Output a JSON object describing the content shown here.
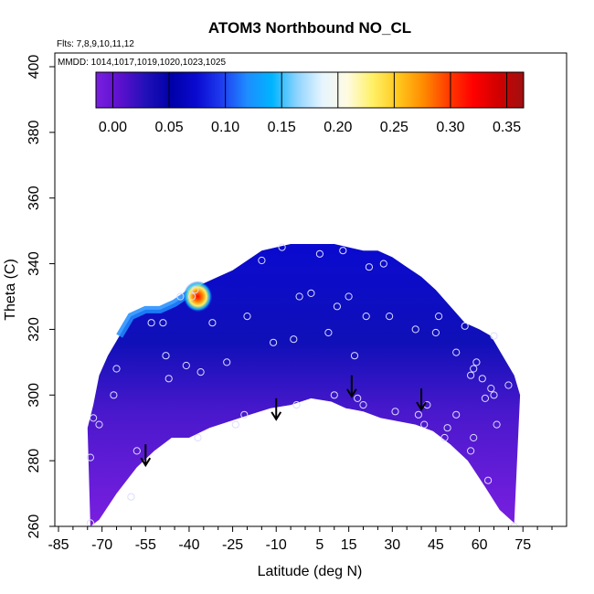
{
  "chart_data": {
    "type": "heatmap",
    "title": "ATOM3 Northbound NO_CL",
    "subtitle_flights": "Flts: 7,8,9,10,11,12",
    "subtitle_dates": "MMDD: 1014,1017,1019,1020,1023,1025",
    "xlabel": "Latitude (deg N)",
    "ylabel": "Theta (C)",
    "xlim": [
      -85,
      85
    ],
    "ylim": [
      260,
      400
    ],
    "x_ticks": [
      -85,
      -70,
      -55,
      -40,
      -25,
      -10,
      5,
      15,
      30,
      45,
      60,
      75
    ],
    "x_tick_labels": [
      "-85",
      "-70",
      "-55",
      "-40",
      "-25",
      "-10",
      "5",
      "15",
      "30",
      "45",
      "60",
      "75"
    ],
    "y_ticks": [
      260,
      280,
      300,
      320,
      340,
      360,
      380,
      400
    ],
    "y_tick_labels": [
      "260",
      "280",
      "300",
      "320",
      "340",
      "360",
      "380",
      "400"
    ],
    "colorbar": {
      "range": [
        -0.015,
        0.365
      ],
      "ticks": [
        0.0,
        0.05,
        0.1,
        0.15,
        0.2,
        0.25,
        0.3,
        0.35
      ],
      "tick_labels": [
        "0.00",
        "0.05",
        "0.10",
        "0.15",
        "0.20",
        "0.25",
        "0.30",
        "0.35"
      ],
      "colors": [
        "#7a1fe0",
        "#5a10cc",
        "#2010b8",
        "#0000a8",
        "#0a0ad0",
        "#1e3cf0",
        "#1e8cff",
        "#00b4ff",
        "#8fd4ff",
        "#e6f5ff",
        "#fffbe0",
        "#fff066",
        "#ffc81e",
        "#ff8c00",
        "#ff3c00",
        "#ff0000",
        "#d00000",
        "#a01010"
      ]
    },
    "field_boundary": {
      "lat": [
        -74,
        -71,
        -65,
        -58,
        -52,
        -46,
        -40,
        -33,
        -26,
        -19,
        -12,
        -5,
        2,
        9,
        14,
        20,
        26,
        32,
        38,
        44,
        50,
        56,
        62,
        67,
        72,
        74,
        72,
        68,
        64,
        60,
        55,
        50,
        45,
        40,
        35,
        30,
        25,
        20,
        15,
        10,
        5,
        0,
        -5,
        -10,
        -15,
        -20,
        -25,
        -30,
        -35,
        -40,
        -45,
        -50,
        -55,
        -60,
        -64,
        -68,
        -71,
        -73,
        -75
      ],
      "theta": [
        260,
        262,
        270,
        278,
        283,
        287,
        287,
        290,
        292,
        294,
        296,
        297,
        299,
        298,
        296,
        295,
        293,
        292,
        291,
        289,
        285,
        280,
        272,
        265,
        261,
        300,
        306,
        312,
        318,
        320,
        322,
        327,
        332,
        336,
        339,
        342,
        344,
        344,
        345,
        346,
        346,
        346,
        346,
        345,
        344,
        341,
        338,
        336,
        334,
        331,
        328,
        326,
        326,
        324,
        318,
        312,
        306,
        297,
        290
      ]
    },
    "hotspot": {
      "lat": -37,
      "theta": 330,
      "value": 0.34
    },
    "observations": [
      {
        "lat": -74,
        "theta": 261
      },
      {
        "lat": -74,
        "theta": 281
      },
      {
        "lat": -73,
        "theta": 293
      },
      {
        "lat": -71,
        "theta": 291
      },
      {
        "lat": -66,
        "theta": 300
      },
      {
        "lat": -65,
        "theta": 308
      },
      {
        "lat": -58,
        "theta": 283
      },
      {
        "lat": -60,
        "theta": 269
      },
      {
        "lat": -53,
        "theta": 322
      },
      {
        "lat": -49,
        "theta": 322
      },
      {
        "lat": -48,
        "theta": 312
      },
      {
        "lat": -47,
        "theta": 305
      },
      {
        "lat": -43,
        "theta": 330
      },
      {
        "lat": -41,
        "theta": 309
      },
      {
        "lat": -39,
        "theta": 330
      },
      {
        "lat": -38,
        "theta": 332
      },
      {
        "lat": -36,
        "theta": 307
      },
      {
        "lat": -37,
        "theta": 287
      },
      {
        "lat": -32,
        "theta": 322
      },
      {
        "lat": -24,
        "theta": 291
      },
      {
        "lat": -27,
        "theta": 310
      },
      {
        "lat": -20,
        "theta": 324
      },
      {
        "lat": -21,
        "theta": 294
      },
      {
        "lat": -15,
        "theta": 341
      },
      {
        "lat": -11,
        "theta": 316
      },
      {
        "lat": -8,
        "theta": 345
      },
      {
        "lat": -4,
        "theta": 317
      },
      {
        "lat": -3,
        "theta": 297
      },
      {
        "lat": -2,
        "theta": 330
      },
      {
        "lat": 2,
        "theta": 331
      },
      {
        "lat": 5,
        "theta": 343
      },
      {
        "lat": 8,
        "theta": 319
      },
      {
        "lat": 10,
        "theta": 300
      },
      {
        "lat": 11,
        "theta": 327
      },
      {
        "lat": 13,
        "theta": 344
      },
      {
        "lat": 15,
        "theta": 330
      },
      {
        "lat": 17,
        "theta": 312
      },
      {
        "lat": 18,
        "theta": 299
      },
      {
        "lat": 20,
        "theta": 297
      },
      {
        "lat": 21,
        "theta": 324
      },
      {
        "lat": 22,
        "theta": 339
      },
      {
        "lat": 27,
        "theta": 340
      },
      {
        "lat": 29,
        "theta": 324
      },
      {
        "lat": 31,
        "theta": 295
      },
      {
        "lat": 38,
        "theta": 320
      },
      {
        "lat": 39,
        "theta": 294
      },
      {
        "lat": 41,
        "theta": 291
      },
      {
        "lat": 42,
        "theta": 297
      },
      {
        "lat": 45,
        "theta": 319
      },
      {
        "lat": 46,
        "theta": 324
      },
      {
        "lat": 48,
        "theta": 287
      },
      {
        "lat": 49,
        "theta": 290
      },
      {
        "lat": 52,
        "theta": 313
      },
      {
        "lat": 52,
        "theta": 294
      },
      {
        "lat": 55,
        "theta": 321
      },
      {
        "lat": 57,
        "theta": 306
      },
      {
        "lat": 58,
        "theta": 308
      },
      {
        "lat": 59,
        "theta": 310
      },
      {
        "lat": 58,
        "theta": 287
      },
      {
        "lat": 57,
        "theta": 283
      },
      {
        "lat": 61,
        "theta": 305
      },
      {
        "lat": 62,
        "theta": 299
      },
      {
        "lat": 64,
        "theta": 302
      },
      {
        "lat": 65,
        "theta": 300
      },
      {
        "lat": 65,
        "theta": 318
      },
      {
        "lat": 66,
        "theta": 291
      },
      {
        "lat": 63,
        "theta": 274
      },
      {
        "lat": 70,
        "theta": 303
      },
      {
        "lat": 72,
        "theta": 260
      }
    ],
    "arrows": [
      {
        "lat": -55,
        "theta": 285
      },
      {
        "lat": -10,
        "theta": 299
      },
      {
        "lat": 16,
        "theta": 306
      },
      {
        "lat": 40,
        "theta": 302
      }
    ]
  }
}
